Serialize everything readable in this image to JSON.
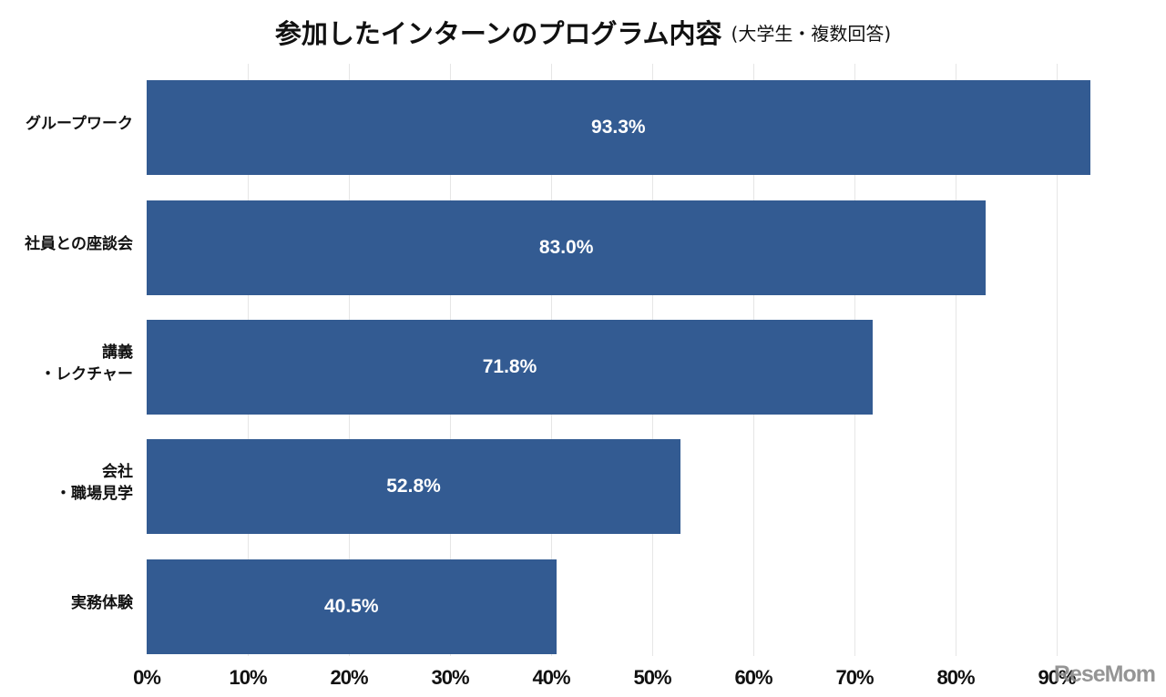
{
  "chart_data": {
    "type": "bar",
    "orientation": "horizontal",
    "title": "参加したインターンのプログラム内容",
    "subtitle": "(大学生・複数回答)",
    "categories": [
      "グループワーク",
      "社員との座談会",
      "講義・レクチャー",
      "会社・職場見学",
      "実務体験"
    ],
    "category_lines": [
      [
        "グループワーク"
      ],
      [
        "社員との座談会"
      ],
      [
        "講義",
        "・レクチャー"
      ],
      [
        "会社",
        "・職場見学"
      ],
      [
        "実務体験"
      ]
    ],
    "values": [
      93.3,
      83.0,
      71.8,
      52.8,
      40.5
    ],
    "value_labels": [
      "93.3%",
      "83.0%",
      "71.8%",
      "52.8%",
      "40.5%"
    ],
    "xlabel": "",
    "ylabel": "",
    "xlim": [
      0,
      100
    ],
    "xticks": [
      "0%",
      "10%",
      "20%",
      "30%",
      "40%",
      "50%",
      "60%",
      "70%",
      "80%",
      "90%"
    ],
    "grid": true,
    "legend": null,
    "bar_color": "#335b92"
  },
  "watermark": {
    "text": "ReseMom"
  }
}
